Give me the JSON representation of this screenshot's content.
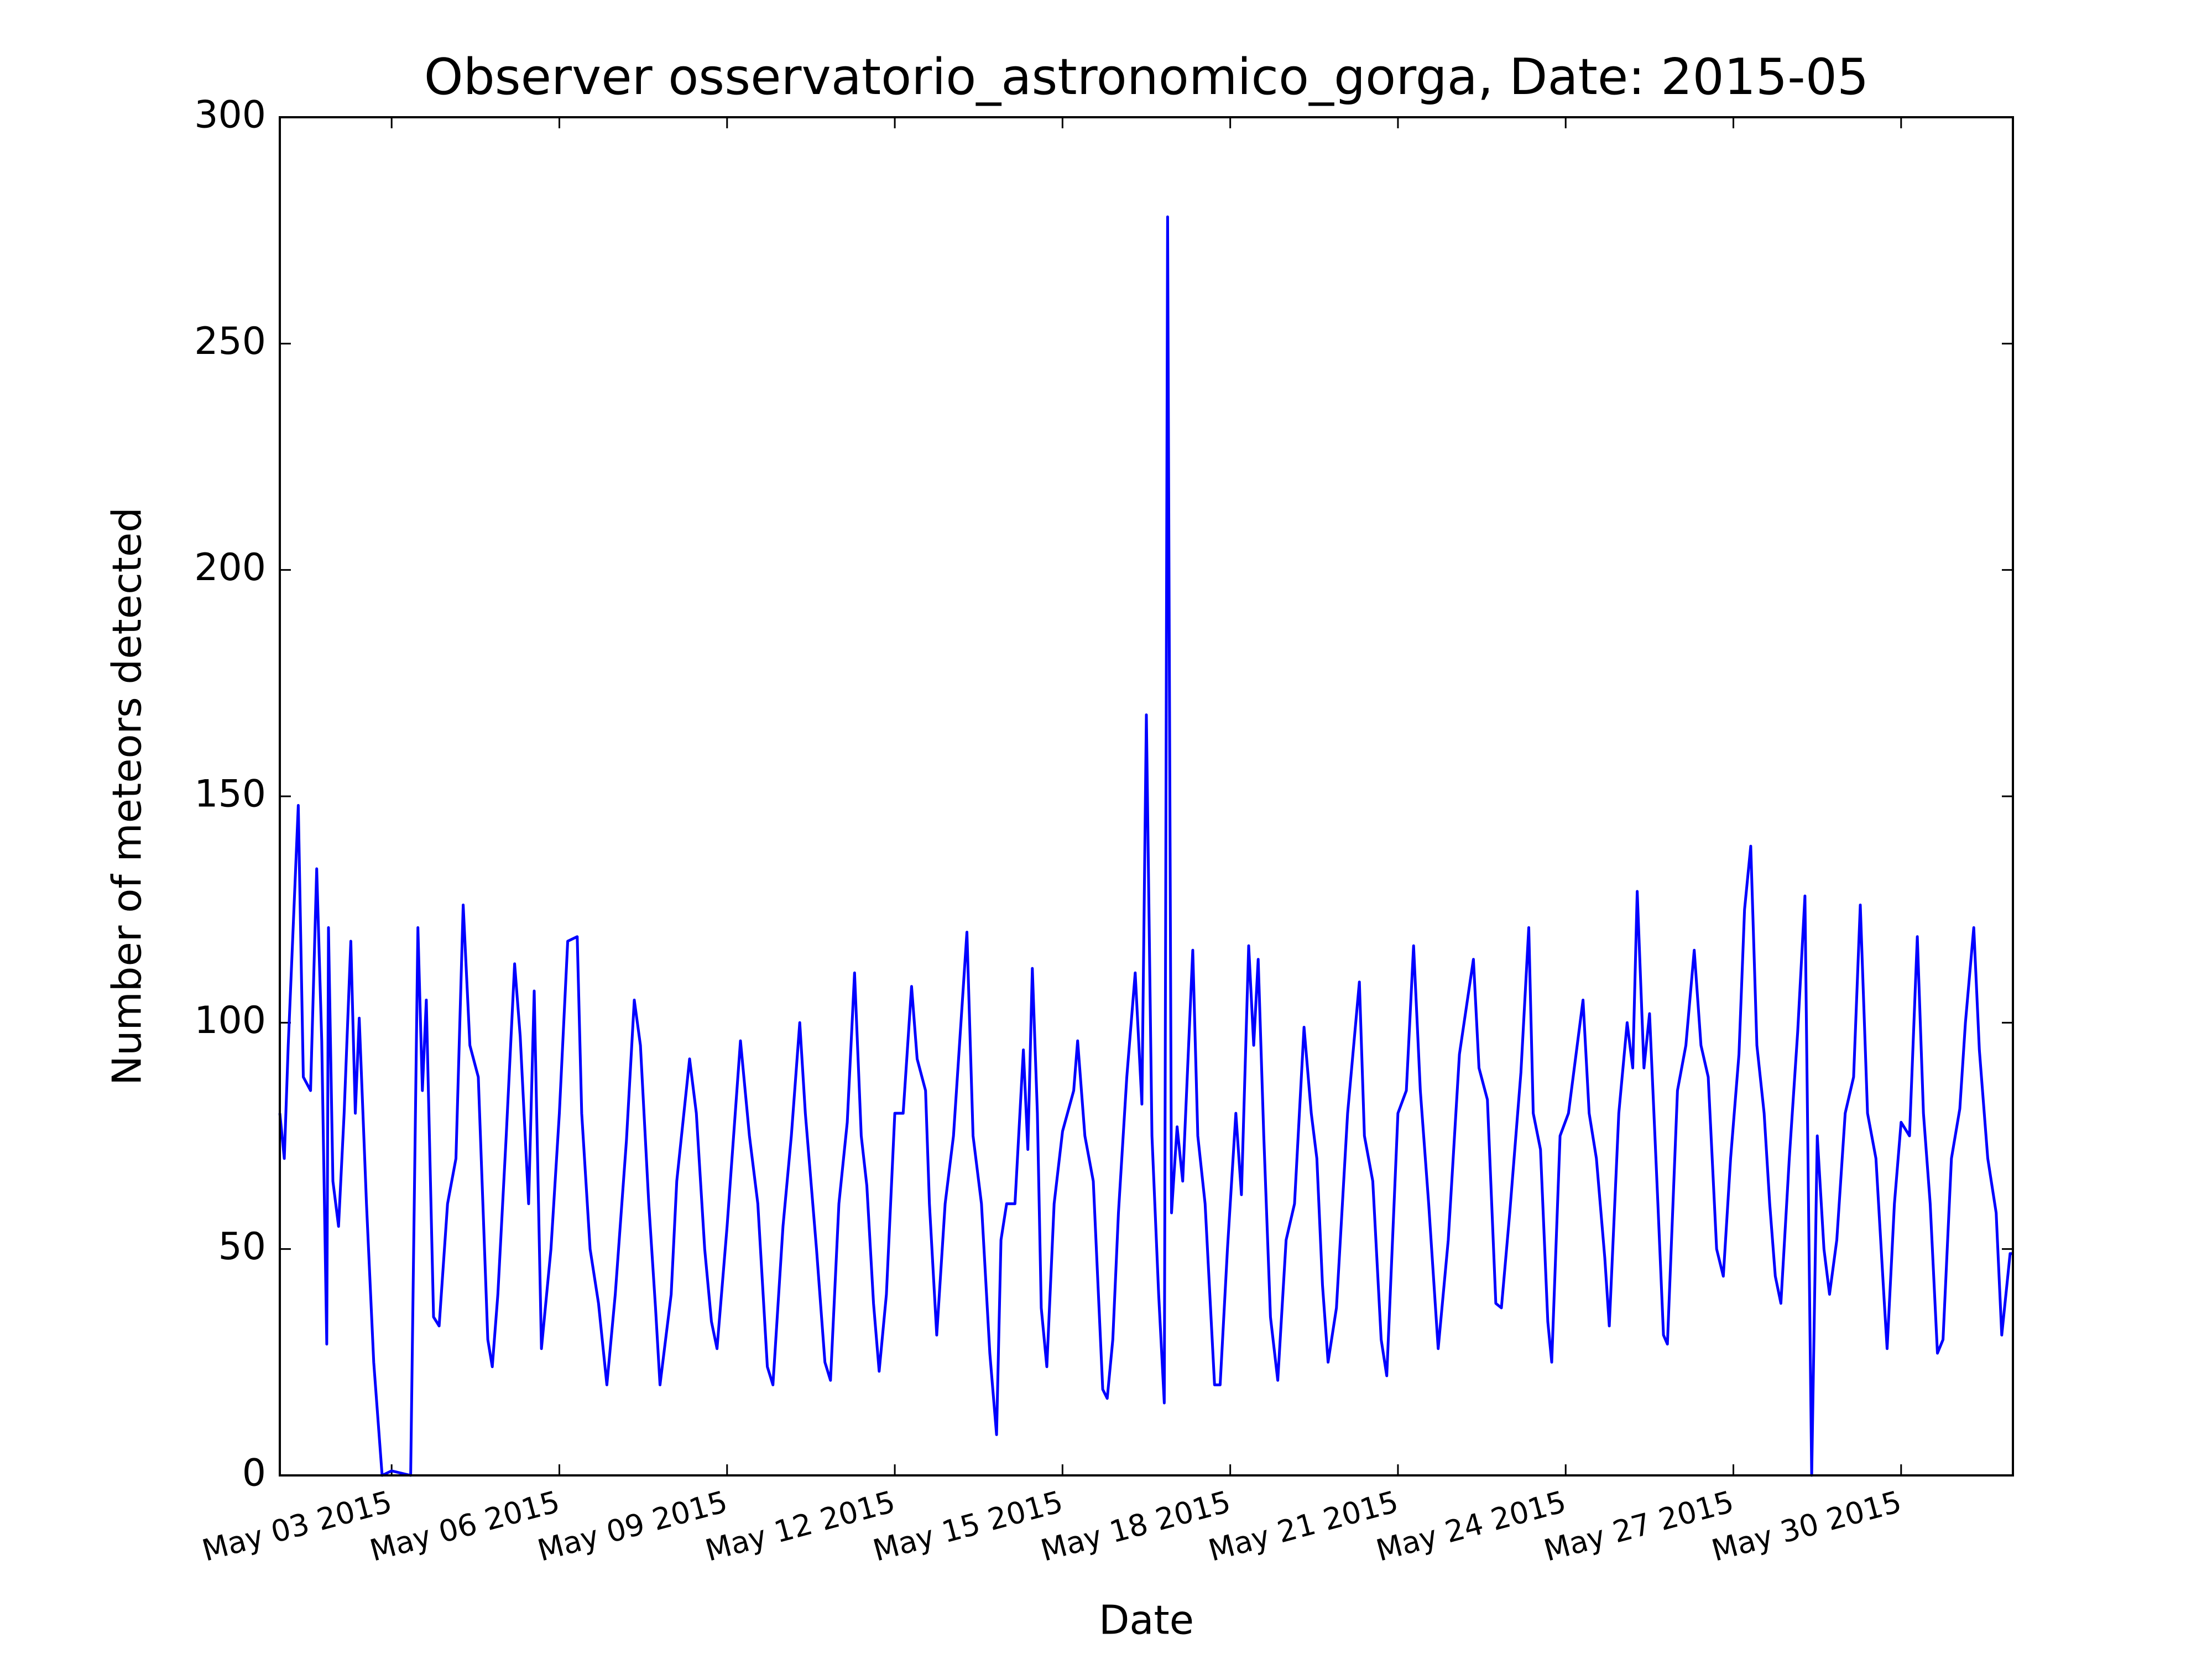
{
  "chart_data": {
    "type": "line",
    "title": "Observer osservatorio_astronomico_gorga, Date: 2015-05",
    "x_label": "Date",
    "y_label": "Number of meteors detected",
    "color": "#0000ff",
    "xlim": [
      1,
      32
    ],
    "ylim": [
      0,
      300
    ],
    "xticks": [
      {
        "value": 3,
        "label": "May 03 2015"
      },
      {
        "value": 6,
        "label": "May 06 2015"
      },
      {
        "value": 9,
        "label": "May 09 2015"
      },
      {
        "value": 12,
        "label": "May 12 2015"
      },
      {
        "value": 15,
        "label": "May 15 2015"
      },
      {
        "value": 18,
        "label": "May 18 2015"
      },
      {
        "value": 21,
        "label": "May 21 2015"
      },
      {
        "value": 24,
        "label": "May 24 2015"
      },
      {
        "value": 27,
        "label": "May 27 2015"
      },
      {
        "value": 30,
        "label": "May 30 2015"
      }
    ],
    "yticks": [
      0,
      50,
      100,
      150,
      200,
      250,
      300
    ],
    "x": [
      1.0,
      1.08,
      1.15,
      1.33,
      1.42,
      1.55,
      1.66,
      1.75,
      1.84,
      1.87,
      1.95,
      2.05,
      2.15,
      2.27,
      2.35,
      2.42,
      2.55,
      2.68,
      2.83,
      3.0,
      3.34,
      3.47,
      3.55,
      3.62,
      3.75,
      3.85,
      4.0,
      4.15,
      4.28,
      4.4,
      4.55,
      4.72,
      4.8,
      4.9,
      5.05,
      5.2,
      5.3,
      5.45,
      5.55,
      5.68,
      5.85,
      6.0,
      6.15,
      6.32,
      6.4,
      6.55,
      6.7,
      6.85,
      7.0,
      7.2,
      7.34,
      7.45,
      7.6,
      7.72,
      7.8,
      8.0,
      8.1,
      8.33,
      8.45,
      8.6,
      8.72,
      8.82,
      9.0,
      9.24,
      9.4,
      9.55,
      9.72,
      9.82,
      10.0,
      10.15,
      10.3,
      10.4,
      10.6,
      10.75,
      10.85,
      11.0,
      11.15,
      11.28,
      11.4,
      11.5,
      11.62,
      11.72,
      11.85,
      12.0,
      12.15,
      12.3,
      12.4,
      12.55,
      12.62,
      12.75,
      12.9,
      13.05,
      13.29,
      13.4,
      13.55,
      13.7,
      13.82,
      13.9,
      14.0,
      14.15,
      14.3,
      14.38,
      14.46,
      14.55,
      14.62,
      14.72,
      14.85,
      15.0,
      15.2,
      15.27,
      15.4,
      15.55,
      15.72,
      15.8,
      15.9,
      16.0,
      16.15,
      16.3,
      16.42,
      16.5,
      16.6,
      16.72,
      16.82,
      16.88,
      16.95,
      17.05,
      17.15,
      17.33,
      17.42,
      17.55,
      17.72,
      17.82,
      17.95,
      18.1,
      18.2,
      18.33,
      18.42,
      18.5,
      18.6,
      18.72,
      18.85,
      19.0,
      19.15,
      19.32,
      19.45,
      19.55,
      19.65,
      19.75,
      19.9,
      20.1,
      20.31,
      20.4,
      20.55,
      20.7,
      20.8,
      21.0,
      21.15,
      21.28,
      21.4,
      21.55,
      21.72,
      21.9,
      22.1,
      22.35,
      22.45,
      22.6,
      22.75,
      22.85,
      23.0,
      23.2,
      23.34,
      23.42,
      23.55,
      23.68,
      23.75,
      23.9,
      24.05,
      24.31,
      24.42,
      24.55,
      24.7,
      24.78,
      24.95,
      25.1,
      25.2,
      25.28,
      25.4,
      25.5,
      25.65,
      25.75,
      25.82,
      26.0,
      26.15,
      26.3,
      26.42,
      26.55,
      26.7,
      26.82,
      26.95,
      27.1,
      27.2,
      27.31,
      27.42,
      27.55,
      27.65,
      27.75,
      27.85,
      28.0,
      28.15,
      28.28,
      28.4,
      28.5,
      28.62,
      28.72,
      28.85,
      29.0,
      29.15,
      29.27,
      29.4,
      29.55,
      29.7,
      29.75,
      29.88,
      30.0,
      30.15,
      30.29,
      30.4,
      30.52,
      30.65,
      30.75,
      30.9,
      31.05,
      31.15,
      31.3,
      31.4,
      31.55,
      31.7,
      31.8,
      31.95,
      32.0
    ],
    "values": [
      80,
      70,
      95,
      148,
      88,
      85,
      134,
      96,
      29,
      121,
      65,
      55,
      80,
      118,
      80,
      101,
      60,
      25,
      0,
      1,
      0,
      121,
      85,
      105,
      35,
      33,
      60,
      70,
      126,
      95,
      88,
      30,
      24,
      40,
      75,
      113,
      97,
      60,
      107,
      28,
      50,
      80,
      118,
      119,
      80,
      50,
      38,
      20,
      40,
      74,
      105,
      95,
      60,
      37,
      20,
      40,
      65,
      92,
      80,
      50,
      34,
      28,
      55,
      96,
      75,
      60,
      24,
      20,
      55,
      75,
      100,
      80,
      50,
      25,
      21,
      60,
      78,
      111,
      75,
      64,
      38,
      23,
      40,
      80,
      80,
      108,
      92,
      85,
      60,
      31,
      60,
      75,
      120,
      75,
      60,
      27,
      9,
      52,
      60,
      60,
      94,
      72,
      112,
      80,
      37,
      24,
      60,
      76,
      85,
      96,
      75,
      65,
      19,
      17,
      30,
      58,
      88,
      111,
      82,
      168,
      75,
      40,
      16,
      278,
      58,
      77,
      65,
      116,
      75,
      60,
      20,
      20,
      50,
      80,
      62,
      117,
      95,
      114,
      75,
      35,
      21,
      52,
      60,
      99,
      80,
      70,
      42,
      25,
      37,
      80,
      109,
      75,
      65,
      30,
      22,
      80,
      85,
      117,
      85,
      60,
      28,
      52,
      93,
      114,
      90,
      83,
      38,
      37,
      58,
      89,
      121,
      80,
      72,
      34,
      25,
      75,
      80,
      105,
      80,
      70,
      48,
      33,
      80,
      100,
      90,
      129,
      90,
      102,
      60,
      31,
      29,
      85,
      95,
      116,
      95,
      88,
      50,
      44,
      70,
      93,
      125,
      139,
      95,
      80,
      60,
      44,
      38,
      70,
      98,
      128,
      0,
      75,
      50,
      40,
      52,
      80,
      88,
      126,
      80,
      70,
      38,
      28,
      60,
      78,
      75,
      119,
      80,
      60,
      27,
      30,
      70,
      81,
      100,
      121,
      94,
      70,
      58,
      31,
      49,
      49
    ]
  }
}
